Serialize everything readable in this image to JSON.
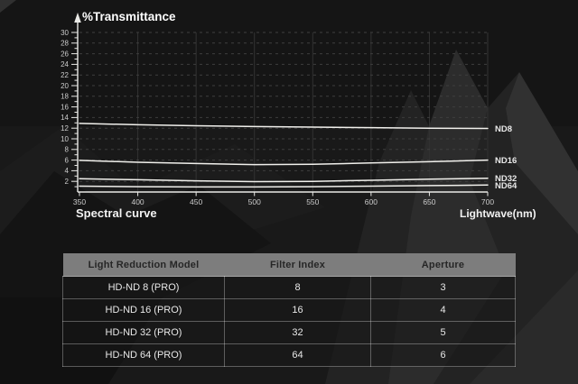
{
  "chart_data": {
    "type": "line",
    "title": "%Transmittance",
    "xlabel": "Lightwave(nm)",
    "x_axis_caption": "Spectral curve",
    "x": [
      350,
      400,
      450,
      500,
      550,
      600,
      650,
      700
    ],
    "x_ticks": [
      350,
      400,
      450,
      500,
      550,
      600,
      650,
      700
    ],
    "xlim": [
      350,
      700
    ],
    "ylim": [
      0,
      30
    ],
    "y_tick_step": 2,
    "y_minor_step": 1,
    "grid": "horizontal-dashed-and-vertical-solid",
    "legend_position": "right-of-line-end",
    "series": [
      {
        "name": "ND8",
        "values": [
          12.9,
          12.65,
          12.45,
          12.3,
          12.2,
          12.1,
          12.0,
          11.95
        ]
      },
      {
        "name": "ND16",
        "values": [
          5.95,
          5.6,
          5.35,
          5.15,
          5.2,
          5.45,
          5.7,
          6.0
        ]
      },
      {
        "name": "ND32",
        "values": [
          2.5,
          2.3,
          2.1,
          1.95,
          2.0,
          2.2,
          2.4,
          2.6
        ]
      },
      {
        "name": "ND64",
        "values": [
          1.1,
          1.0,
          0.95,
          0.95,
          1.0,
          1.1,
          1.2,
          1.3
        ]
      }
    ],
    "colors": {
      "line": "#f1f0ec",
      "axis": "#e9e9e6",
      "tick_label": "#cbcbcb",
      "grid_dashed": "#3e3e3e",
      "grid_vertical": "#323232",
      "title_text": "#fdfdfd"
    }
  },
  "table": {
    "headers": [
      "Light Reduction Model",
      "Filter Index",
      "Aperture"
    ],
    "rows": [
      [
        "HD-ND 8 (PRO)",
        "8",
        "3"
      ],
      [
        "HD-ND 16 (PRO)",
        "16",
        "4"
      ],
      [
        "HD-ND 32 (PRO)",
        "32",
        "5"
      ],
      [
        "HD-ND 64 (PRO)",
        "64",
        "6"
      ]
    ],
    "colors": {
      "header_bg": "#7d7d7d",
      "header_text": "#262626",
      "row_text": "#e8e8e8"
    }
  }
}
